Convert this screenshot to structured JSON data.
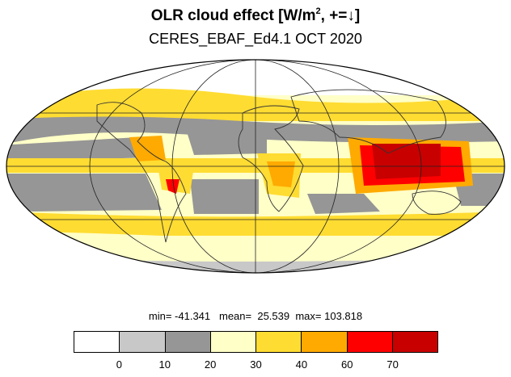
{
  "title": {
    "main": "OLR cloud effect [W/m",
    "sup": "2",
    "tail": ", +=↓]"
  },
  "subtitle": "CERES_EBAF_Ed4.1 OCT 2020",
  "stats": {
    "min_label": "min=",
    "min": "-41.341",
    "mean_label": "mean=",
    "mean": "25.539",
    "max_label": "max=",
    "max": "103.818"
  },
  "colorbar": {
    "colors": [
      "#ffffff",
      "#c8c8c8",
      "#969696",
      "#ffffc8",
      "#ffdc32",
      "#ffaa00",
      "#ff0000",
      "#c80000"
    ],
    "tick_labels": [
      "0",
      "10",
      "20",
      "30",
      "40",
      "60",
      "70"
    ]
  },
  "map": {
    "projection": "mollweide",
    "ocean_default_color": "#ffffc8",
    "region_colors": {
      "warm_pool": "#ffaa00",
      "warm_pool_core": "#ff0000",
      "warm_pool_peak": "#c80000",
      "amazon": "#ffdc32",
      "africa": "#ffdc32",
      "subtropical_gray": "#969696",
      "light_gray": "#c8c8c8",
      "yellow": "#ffdc32",
      "pale": "#ffffc8"
    }
  }
}
